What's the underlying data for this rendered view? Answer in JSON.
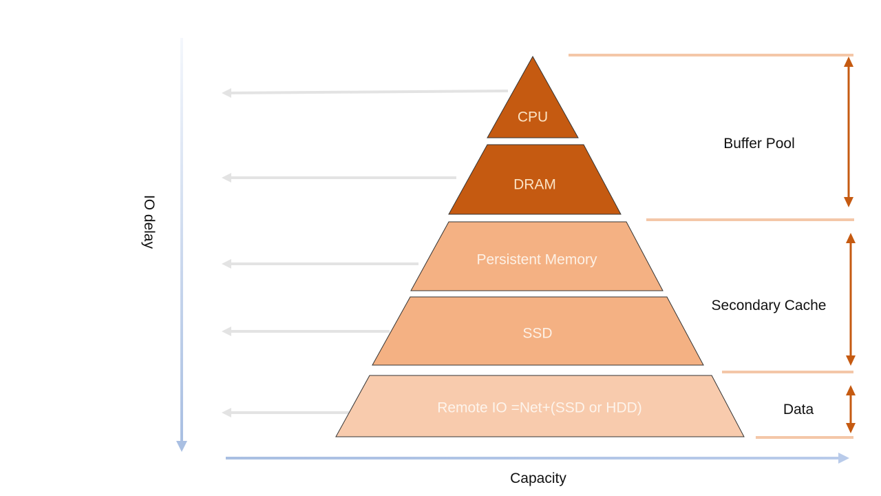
{
  "axes": {
    "y_label": "IO delay",
    "x_label": "Capacity"
  },
  "layers": [
    {
      "label": "CPU",
      "fill": "#C55A11",
      "text_color": "#FBE3C4"
    },
    {
      "label": "DRAM",
      "fill": "#C55A11",
      "text_color": "#FBE3C4"
    },
    {
      "label": "Persistent Memory",
      "fill": "#F4B183",
      "text_color": "#FDF1E6"
    },
    {
      "label": "SSD",
      "fill": "#F4B183",
      "text_color": "#FDF1E6"
    },
    {
      "label": "Remote IO =Net+(SSD or HDD)",
      "fill": "#F8CBAD",
      "text_color": "#FDF4EC"
    }
  ],
  "groups": [
    {
      "label": "Buffer Pool"
    },
    {
      "label": "Secondary Cache"
    },
    {
      "label": "Data"
    }
  ],
  "colors": {
    "accent": "#C55A11",
    "divider": "#F4C7A8",
    "axis": "#B4C7E7",
    "delay_arrow": "#E3E3E3"
  }
}
